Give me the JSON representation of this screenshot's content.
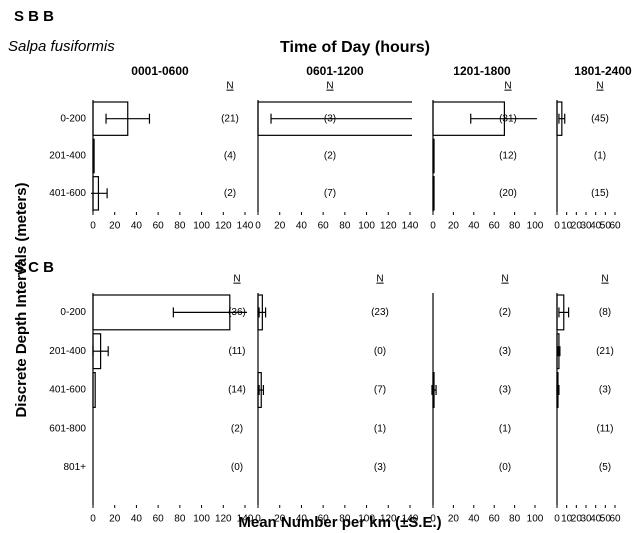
{
  "figure": {
    "header": "S B B",
    "species": "Salpa fusiformis",
    "supertitle": "Time of Day (hours)",
    "ylabel": "Discrete Depth Intervals (meters)",
    "xlabel": "Mean Number per km (±S.E.)",
    "n_header": "N"
  },
  "chart_data": {
    "type": "bar",
    "columns": [
      {
        "title": "0001-0600",
        "xlim": [
          0,
          140
        ],
        "xticks": [
          0,
          20,
          40,
          60,
          80,
          100,
          120,
          140
        ]
      },
      {
        "title": "0601-1200",
        "xlim": [
          0,
          140
        ],
        "xticks": [
          0,
          20,
          40,
          60,
          80,
          100,
          120,
          140
        ]
      },
      {
        "title": "1201-1800",
        "xlim": [
          0,
          100
        ],
        "xticks": [
          0,
          20,
          40,
          60,
          80,
          100
        ]
      },
      {
        "title": "1801-2400",
        "xlim": [
          0,
          60
        ],
        "xticks": [
          0,
          10,
          20,
          30,
          40,
          50,
          60
        ]
      }
    ],
    "rows": [
      {
        "label": "S B B",
        "categories": [
          "0-200",
          "201-400",
          "401-600"
        ],
        "panels": [
          {
            "values": [
              32,
              1,
              5
            ],
            "errors": [
              20,
              0,
              8
            ],
            "n": [
              "(21)",
              "(4)",
              "(2)"
            ]
          },
          {
            "values": [
              143,
              0,
              0
            ],
            "errors": [
              131,
              0,
              0
            ],
            "n": [
              "(3)",
              "(2)",
              "(7)"
            ]
          },
          {
            "values": [
              70,
              1,
              1
            ],
            "errors": [
              33,
              0,
              0
            ],
            "n": [
              "(31)",
              "(12)",
              "(20)"
            ]
          },
          {
            "values": [
              5,
              0,
              0
            ],
            "errors": [
              3,
              0,
              0
            ],
            "n": [
              "(45)",
              "(1)",
              "(15)"
            ]
          }
        ]
      },
      {
        "label": "S C B",
        "categories": [
          "0-200",
          "201-400",
          "401-600",
          "601-800",
          "801+"
        ],
        "panels": [
          {
            "values": [
              126,
              7,
              2,
              0,
              0
            ],
            "errors": [
              52,
              7,
              0,
              0,
              0
            ],
            "n": [
              "(36)",
              "(11)",
              "(14)",
              "(2)",
              "(0)"
            ]
          },
          {
            "values": [
              4,
              0,
              3,
              0,
              0
            ],
            "errors": [
              3,
              0,
              2,
              0,
              0
            ],
            "n": [
              "(23)",
              "(0)",
              "(7)",
              "(1)",
              "(3)"
            ]
          },
          {
            "values": [
              0,
              0,
              1,
              0,
              0
            ],
            "errors": [
              0,
              0,
              2,
              0,
              0
            ],
            "n": [
              "(2)",
              "(3)",
              "(3)",
              "(1)",
              "(0)"
            ]
          },
          {
            "values": [
              7,
              2,
              1,
              0,
              0
            ],
            "errors": [
              5,
              1,
              1,
              0,
              0
            ],
            "n": [
              "(8)",
              "(21)",
              "(3)",
              "(11)",
              "(5)"
            ]
          }
        ]
      }
    ]
  }
}
